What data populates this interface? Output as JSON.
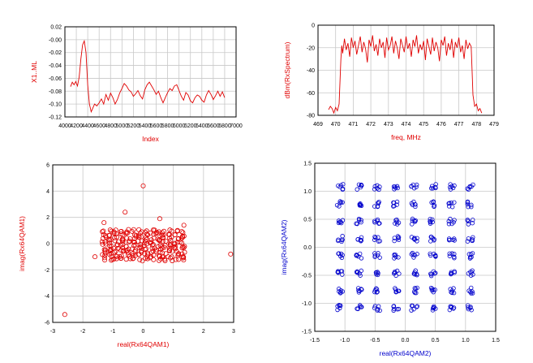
{
  "colors": {
    "red": "#e00000",
    "blue": "#0000cc",
    "grid": "#c8c8c8",
    "frame": "#000000"
  },
  "chart_data": [
    {
      "id": "p1",
      "type": "line",
      "xlabel": "Index",
      "ylabel": "X1..ML",
      "xlim": [
        4000,
        7000
      ],
      "ylim": [
        -0.12,
        0.02
      ],
      "xticks": [
        4000,
        4200,
        4400,
        4600,
        4800,
        5000,
        5200,
        5400,
        5600,
        5800,
        6000,
        6200,
        6400,
        6600,
        6800,
        7000
      ],
      "xtick_labels": [
        "4000",
        "4200",
        "4400",
        "4600",
        "4800",
        "5000",
        "5200",
        "5400",
        "5600",
        "5800",
        "6000",
        "6200",
        "6400",
        "6600",
        "6800",
        "7000"
      ],
      "yticks": [
        0.02,
        0.0,
        -0.02,
        -0.04,
        -0.06,
        -0.08,
        -0.1,
        -0.12
      ],
      "ytick_labels": [
        "0.02",
        "-0.00",
        "-0.02",
        "-0.04",
        "-0.06",
        "-0.08",
        "-0.10",
        "-0.12"
      ],
      "grid": true,
      "series": [
        {
          "color": "red",
          "x": [
            4100,
            4130,
            4160,
            4190,
            4220,
            4250,
            4280,
            4310,
            4340,
            4370,
            4400,
            4430,
            4460,
            4490,
            4520,
            4560,
            4600,
            4640,
            4680,
            4720,
            4760,
            4800,
            4840,
            4880,
            4920,
            4960,
            5000,
            5040,
            5080,
            5120,
            5160,
            5200,
            5240,
            5280,
            5320,
            5360,
            5400,
            5440,
            5480,
            5520,
            5560,
            5600,
            5640,
            5680,
            5720,
            5760,
            5800,
            5840,
            5880,
            5920,
            5960,
            6000,
            6040,
            6080,
            6120,
            6160,
            6200,
            6240,
            6280,
            6320,
            6360,
            6400,
            6440,
            6480,
            6520,
            6560,
            6600,
            6640,
            6680,
            6720,
            6760,
            6800
          ],
          "y": [
            -0.073,
            -0.066,
            -0.07,
            -0.065,
            -0.072,
            -0.058,
            -0.03,
            -0.008,
            -0.002,
            -0.02,
            -0.07,
            -0.1,
            -0.112,
            -0.106,
            -0.1,
            -0.103,
            -0.098,
            -0.092,
            -0.1,
            -0.085,
            -0.094,
            -0.083,
            -0.09,
            -0.1,
            -0.093,
            -0.083,
            -0.076,
            -0.068,
            -0.072,
            -0.078,
            -0.081,
            -0.088,
            -0.084,
            -0.079,
            -0.087,
            -0.092,
            -0.078,
            -0.07,
            -0.066,
            -0.072,
            -0.078,
            -0.085,
            -0.08,
            -0.09,
            -0.098,
            -0.09,
            -0.082,
            -0.076,
            -0.079,
            -0.072,
            -0.07,
            -0.079,
            -0.088,
            -0.094,
            -0.082,
            -0.086,
            -0.095,
            -0.098,
            -0.09,
            -0.086,
            -0.088,
            -0.094,
            -0.097,
            -0.086,
            -0.079,
            -0.085,
            -0.093,
            -0.087,
            -0.08,
            -0.088,
            -0.081,
            -0.09
          ]
        }
      ]
    },
    {
      "id": "p2",
      "type": "line",
      "xlabel": "freq, MHz",
      "ylabel": "dBm(RxSpectrum)",
      "xlim": [
        469,
        479
      ],
      "ylim": [
        -80,
        0
      ],
      "xticks": [
        469,
        470,
        471,
        472,
        473,
        474,
        475,
        476,
        477,
        478,
        479
      ],
      "xtick_labels": [
        "469",
        "470",
        "471",
        "472",
        "473",
        "474",
        "475",
        "476",
        "477",
        "478",
        "479"
      ],
      "yticks": [
        0,
        -20,
        -40,
        -60,
        -80
      ],
      "ytick_labels": [
        "0",
        "-20",
        "-40",
        "-60",
        "-80"
      ],
      "grid": true,
      "series": [
        {
          "color": "red",
          "x": [
            469.6,
            469.7,
            469.8,
            469.9,
            470.0,
            470.1,
            470.2,
            470.3,
            470.35,
            470.4,
            470.5,
            470.6,
            470.7,
            470.8,
            470.9,
            471.0,
            471.1,
            471.2,
            471.3,
            471.4,
            471.5,
            471.6,
            471.7,
            471.8,
            471.9,
            472.0,
            472.1,
            472.2,
            472.3,
            472.4,
            472.5,
            472.6,
            472.7,
            472.8,
            472.9,
            473.0,
            473.1,
            473.2,
            473.3,
            473.4,
            473.5,
            473.6,
            473.7,
            473.8,
            473.9,
            474.0,
            474.1,
            474.2,
            474.3,
            474.4,
            474.5,
            474.6,
            474.7,
            474.8,
            474.9,
            475.0,
            475.1,
            475.2,
            475.3,
            475.4,
            475.5,
            475.6,
            475.7,
            475.8,
            475.9,
            476.0,
            476.1,
            476.2,
            476.3,
            476.4,
            476.5,
            476.6,
            476.7,
            476.8,
            476.9,
            477.0,
            477.1,
            477.2,
            477.3,
            477.4,
            477.5,
            477.6,
            477.7,
            477.75,
            477.8,
            477.9,
            478.0,
            478.1,
            478.2,
            478.3
          ],
          "y": [
            -75,
            -72,
            -74,
            -78,
            -73,
            -76,
            -70,
            -30,
            -18,
            -25,
            -12,
            -22,
            -16,
            -28,
            -11,
            -20,
            -14,
            -26,
            -18,
            -10,
            -24,
            -15,
            -21,
            -33,
            -13,
            -19,
            -9,
            -23,
            -17,
            -27,
            -12,
            -20,
            -15,
            -29,
            -11,
            -22,
            -18,
            -10,
            -25,
            -14,
            -20,
            -30,
            -12,
            -18,
            -24,
            -10,
            -21,
            -16,
            -28,
            -13,
            -19,
            -9,
            -25,
            -17,
            -22,
            -14,
            -31,
            -12,
            -19,
            -26,
            -11,
            -23,
            -15,
            -20,
            -32,
            -13,
            -18,
            -10,
            -27,
            -16,
            -22,
            -12,
            -29,
            -15,
            -20,
            -11,
            -24,
            -18,
            -30,
            -13,
            -21,
            -16,
            -19,
            -40,
            -62,
            -72,
            -70,
            -76,
            -74,
            -78
          ]
        }
      ]
    },
    {
      "id": "p3",
      "type": "scatter",
      "xlabel": "real(Rx64QAM1)",
      "ylabel": "imag(Rx64QAM1)",
      "xlim": [
        -3,
        3
      ],
      "ylim": [
        -6,
        6
      ],
      "xticks": [
        -3,
        -2,
        -1,
        0,
        1,
        2,
        3
      ],
      "xtick_labels": [
        "-3",
        "-2",
        "-1",
        "0",
        "1",
        "2",
        "3"
      ],
      "yticks": [
        6,
        4,
        2,
        0,
        -2,
        -4,
        -6
      ],
      "ytick_labels": [
        "6",
        "4",
        "2",
        "0",
        "-2",
        "-4",
        "-6"
      ],
      "grid": true,
      "marker_color": "red",
      "cluster": {
        "x_columns": [
          -1.3,
          -1.1,
          -0.9,
          -0.7,
          -0.5,
          -0.3,
          -0.1,
          0.1,
          0.3,
          0.5,
          0.7,
          0.9,
          1.1,
          1.3
        ],
        "y_range": [
          -1.2,
          1.2
        ],
        "y_step": 0.27
      },
      "outliers": {
        "x": [
          -2.6,
          0.0,
          2.9,
          -1.3,
          -0.6,
          0.55,
          1.35,
          -1.6
        ],
        "y": [
          -5.4,
          4.4,
          -0.8,
          1.6,
          2.4,
          1.9,
          1.4,
          -1.0
        ]
      }
    },
    {
      "id": "p4",
      "type": "scatter",
      "xlabel": "real(Rx64QAM2)",
      "ylabel": "imag(Rx64QAM2)",
      "xlim": [
        -1.5,
        1.5
      ],
      "ylim": [
        -1.5,
        1.5
      ],
      "xticks": [
        -1.5,
        -1.0,
        -0.5,
        0.0,
        0.5,
        1.0,
        1.5
      ],
      "xtick_labels": [
        "-1.5",
        "-1.0",
        "-0.5",
        "0.0",
        "0.5",
        "1.0",
        "1.5"
      ],
      "yticks": [
        1.5,
        1.0,
        0.5,
        0.0,
        -0.5,
        -1.0,
        -1.5
      ],
      "ytick_labels": [
        "1.5",
        "1.0",
        "0.5",
        "0.0",
        "-0.5",
        "-1.0",
        "-1.5"
      ],
      "grid": true,
      "marker_color": "blue",
      "constellation_levels": [
        -1.08,
        -0.77,
        -0.46,
        -0.15,
        0.15,
        0.46,
        0.77,
        1.08
      ],
      "points_per_symbol": 6,
      "spread": 0.05
    }
  ]
}
